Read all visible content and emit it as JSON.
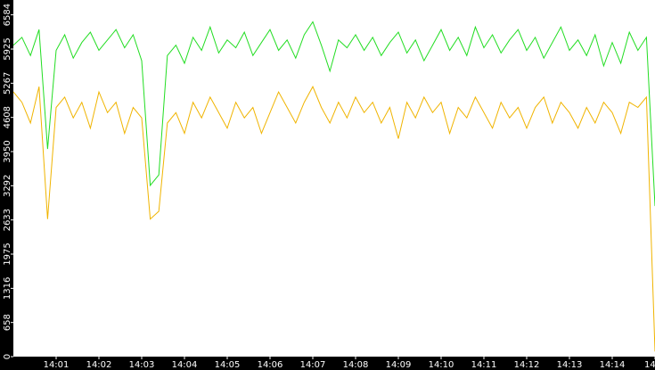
{
  "chart_data": {
    "type": "line",
    "x": [
      0,
      0.2,
      0.4,
      0.6,
      0.8,
      1,
      1.2,
      1.4,
      1.6,
      1.8,
      2,
      2.2,
      2.4,
      2.6,
      2.8,
      3,
      3.2,
      3.4,
      3.6,
      3.8,
      4,
      4.2,
      4.4,
      4.6,
      4.8,
      5,
      5.2,
      5.4,
      5.6,
      5.8,
      6,
      6.2,
      6.4,
      6.6,
      6.8,
      7,
      7.2,
      7.4,
      7.6,
      7.8,
      8,
      8.2,
      8.4,
      8.6,
      8.8,
      9,
      9.2,
      9.4,
      9.6,
      9.8,
      10,
      10.2,
      10.4,
      10.6,
      10.8,
      11,
      11.2,
      11.4,
      11.6,
      11.8,
      12,
      12.2,
      12.4,
      12.6,
      12.8,
      13,
      13.2,
      13.4,
      13.6,
      13.8,
      14,
      14.2,
      14.4,
      14.6,
      14.8,
      15
    ],
    "series": [
      {
        "color": "#22dd22",
        "values": [
          6000,
          6150,
          5800,
          6300,
          4000,
          5900,
          6200,
          5750,
          6050,
          6250,
          5900,
          6100,
          6300,
          5950,
          6200,
          5700,
          3300,
          3500,
          5800,
          6000,
          5650,
          6150,
          5900,
          6350,
          5850,
          6100,
          5950,
          6250,
          5800,
          6050,
          6300,
          5900,
          6100,
          5750,
          6200,
          6450,
          6000,
          5500,
          6100,
          5950,
          6200,
          5900,
          6150,
          5800,
          6050,
          6250,
          5850,
          6100,
          5700,
          6000,
          6300,
          5900,
          6150,
          5800,
          6350,
          5950,
          6200,
          5850,
          6100,
          6300,
          5900,
          6150,
          5750,
          6050,
          6350,
          5900,
          6100,
          5800,
          6200,
          5600,
          6050,
          5650,
          6250,
          5900,
          6150,
          2900
        ]
      },
      {
        "color": "#f0b400",
        "values": [
          5100,
          4900,
          4500,
          5200,
          2650,
          4800,
          5000,
          4600,
          4900,
          4400,
          5100,
          4700,
          4900,
          4300,
          4800,
          4600,
          2650,
          2800,
          4500,
          4700,
          4300,
          4900,
          4600,
          5000,
          4700,
          4400,
          4900,
          4600,
          4800,
          4300,
          4700,
          5100,
          4800,
          4500,
          4900,
          5200,
          4800,
          4500,
          4900,
          4600,
          5000,
          4700,
          4900,
          4500,
          4800,
          4200,
          4900,
          4600,
          5000,
          4700,
          4900,
          4300,
          4800,
          4600,
          5000,
          4700,
          4400,
          4900,
          4600,
          4800,
          4400,
          4800,
          5000,
          4500,
          4900,
          4700,
          4400,
          4800,
          4500,
          4900,
          4700,
          4300,
          4900,
          4800,
          5000,
          100
        ]
      }
    ],
    "xlim": [
      0,
      15
    ],
    "xticks": [
      {
        "value": 1,
        "label": "14:01"
      },
      {
        "value": 2,
        "label": "14:02"
      },
      {
        "value": 3,
        "label": "14:03"
      },
      {
        "value": 4,
        "label": "14:04"
      },
      {
        "value": 5,
        "label": "14:05"
      },
      {
        "value": 6,
        "label": "14:06"
      },
      {
        "value": 7,
        "label": "14:07"
      },
      {
        "value": 8,
        "label": "14:08"
      },
      {
        "value": 9,
        "label": "14:09"
      },
      {
        "value": 10,
        "label": "14:10"
      },
      {
        "value": 11,
        "label": "14:11"
      },
      {
        "value": 12,
        "label": "14:12"
      },
      {
        "value": 13,
        "label": "14:13"
      },
      {
        "value": 14,
        "label": "14:14"
      },
      {
        "value": 15,
        "label": "14"
      }
    ],
    "ylim": [
      0,
      6870
    ],
    "yticks": [
      0,
      658,
      1316,
      1975,
      2633,
      3292,
      3950,
      4608,
      5267,
      5925,
      6584
    ]
  }
}
